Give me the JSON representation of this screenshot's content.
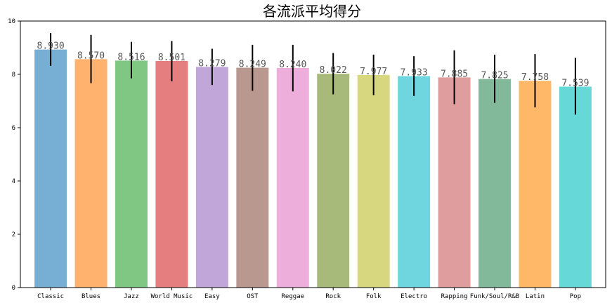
{
  "chart_data": {
    "type": "bar",
    "title": "各流派平均得分",
    "xlabel": "",
    "ylabel": "",
    "ylim": [
      0,
      10
    ],
    "yticks": [
      0,
      2,
      4,
      6,
      8,
      10
    ],
    "grid": false,
    "categories": [
      "Classic",
      "Blues",
      "Jazz",
      "World Music",
      "Easy",
      "OST",
      "Reggae",
      "Rock",
      "Folk",
      "Electro",
      "Rapping",
      "Funk/Soul/R&B",
      "Latin",
      "Pop"
    ],
    "values": [
      8.93,
      8.57,
      8.516,
      8.501,
      8.279,
      8.249,
      8.24,
      8.022,
      7.977,
      7.933,
      7.885,
      7.825,
      7.758,
      7.539
    ],
    "value_labels": [
      "8.930",
      "8.570",
      "8.516",
      "8.501",
      "8.279",
      "8.249",
      "8.240",
      "8.022",
      "7.977",
      "7.933",
      "7.885",
      "7.825",
      "7.758",
      "7.539"
    ],
    "error_low": [
      8.32,
      7.67,
      7.85,
      7.74,
      7.6,
      7.38,
      7.36,
      7.25,
      7.22,
      7.19,
      6.88,
      6.93,
      6.76,
      6.49
    ],
    "error_high": [
      9.55,
      9.48,
      9.22,
      9.25,
      8.96,
      9.11,
      9.11,
      8.8,
      8.74,
      8.68,
      8.9,
      8.74,
      8.76,
      8.62
    ],
    "colors": [
      "#77aed3",
      "#ffb26e",
      "#81c784",
      "#e57e7e",
      "#c0a6d9",
      "#b9998f",
      "#eeaedb",
      "#a8ba79",
      "#d6d77e",
      "#6fd6e0",
      "#e09d9d",
      "#81b99a",
      "#ffb867",
      "#66d8d8"
    ],
    "error_color": "#000000",
    "axis_color": "#000000"
  }
}
